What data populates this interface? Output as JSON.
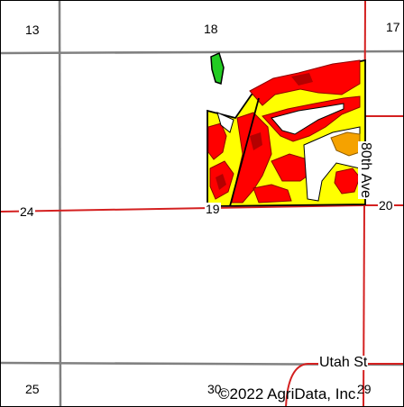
{
  "map": {
    "section_numbers": {
      "top_left": "13",
      "top_center": "18",
      "top_right": "17",
      "mid_left": "24",
      "mid_center": "19",
      "mid_right": "20",
      "bottom_left": "25",
      "bottom_center": "30",
      "bottom_right": "29"
    },
    "roads": {
      "vertical_road": "80th Ave",
      "horizontal_road": "Utah St"
    },
    "copyright": "©2022 AgriData, Inc.",
    "colors": {
      "section_line": "#808080",
      "road_line": "#d42020",
      "field_yellow": "#ffff00",
      "field_red": "#ff0000",
      "field_darkred": "#b40000",
      "field_orange": "#f5a200",
      "field_green": "#22cc22",
      "field_outline": "#000000"
    }
  }
}
